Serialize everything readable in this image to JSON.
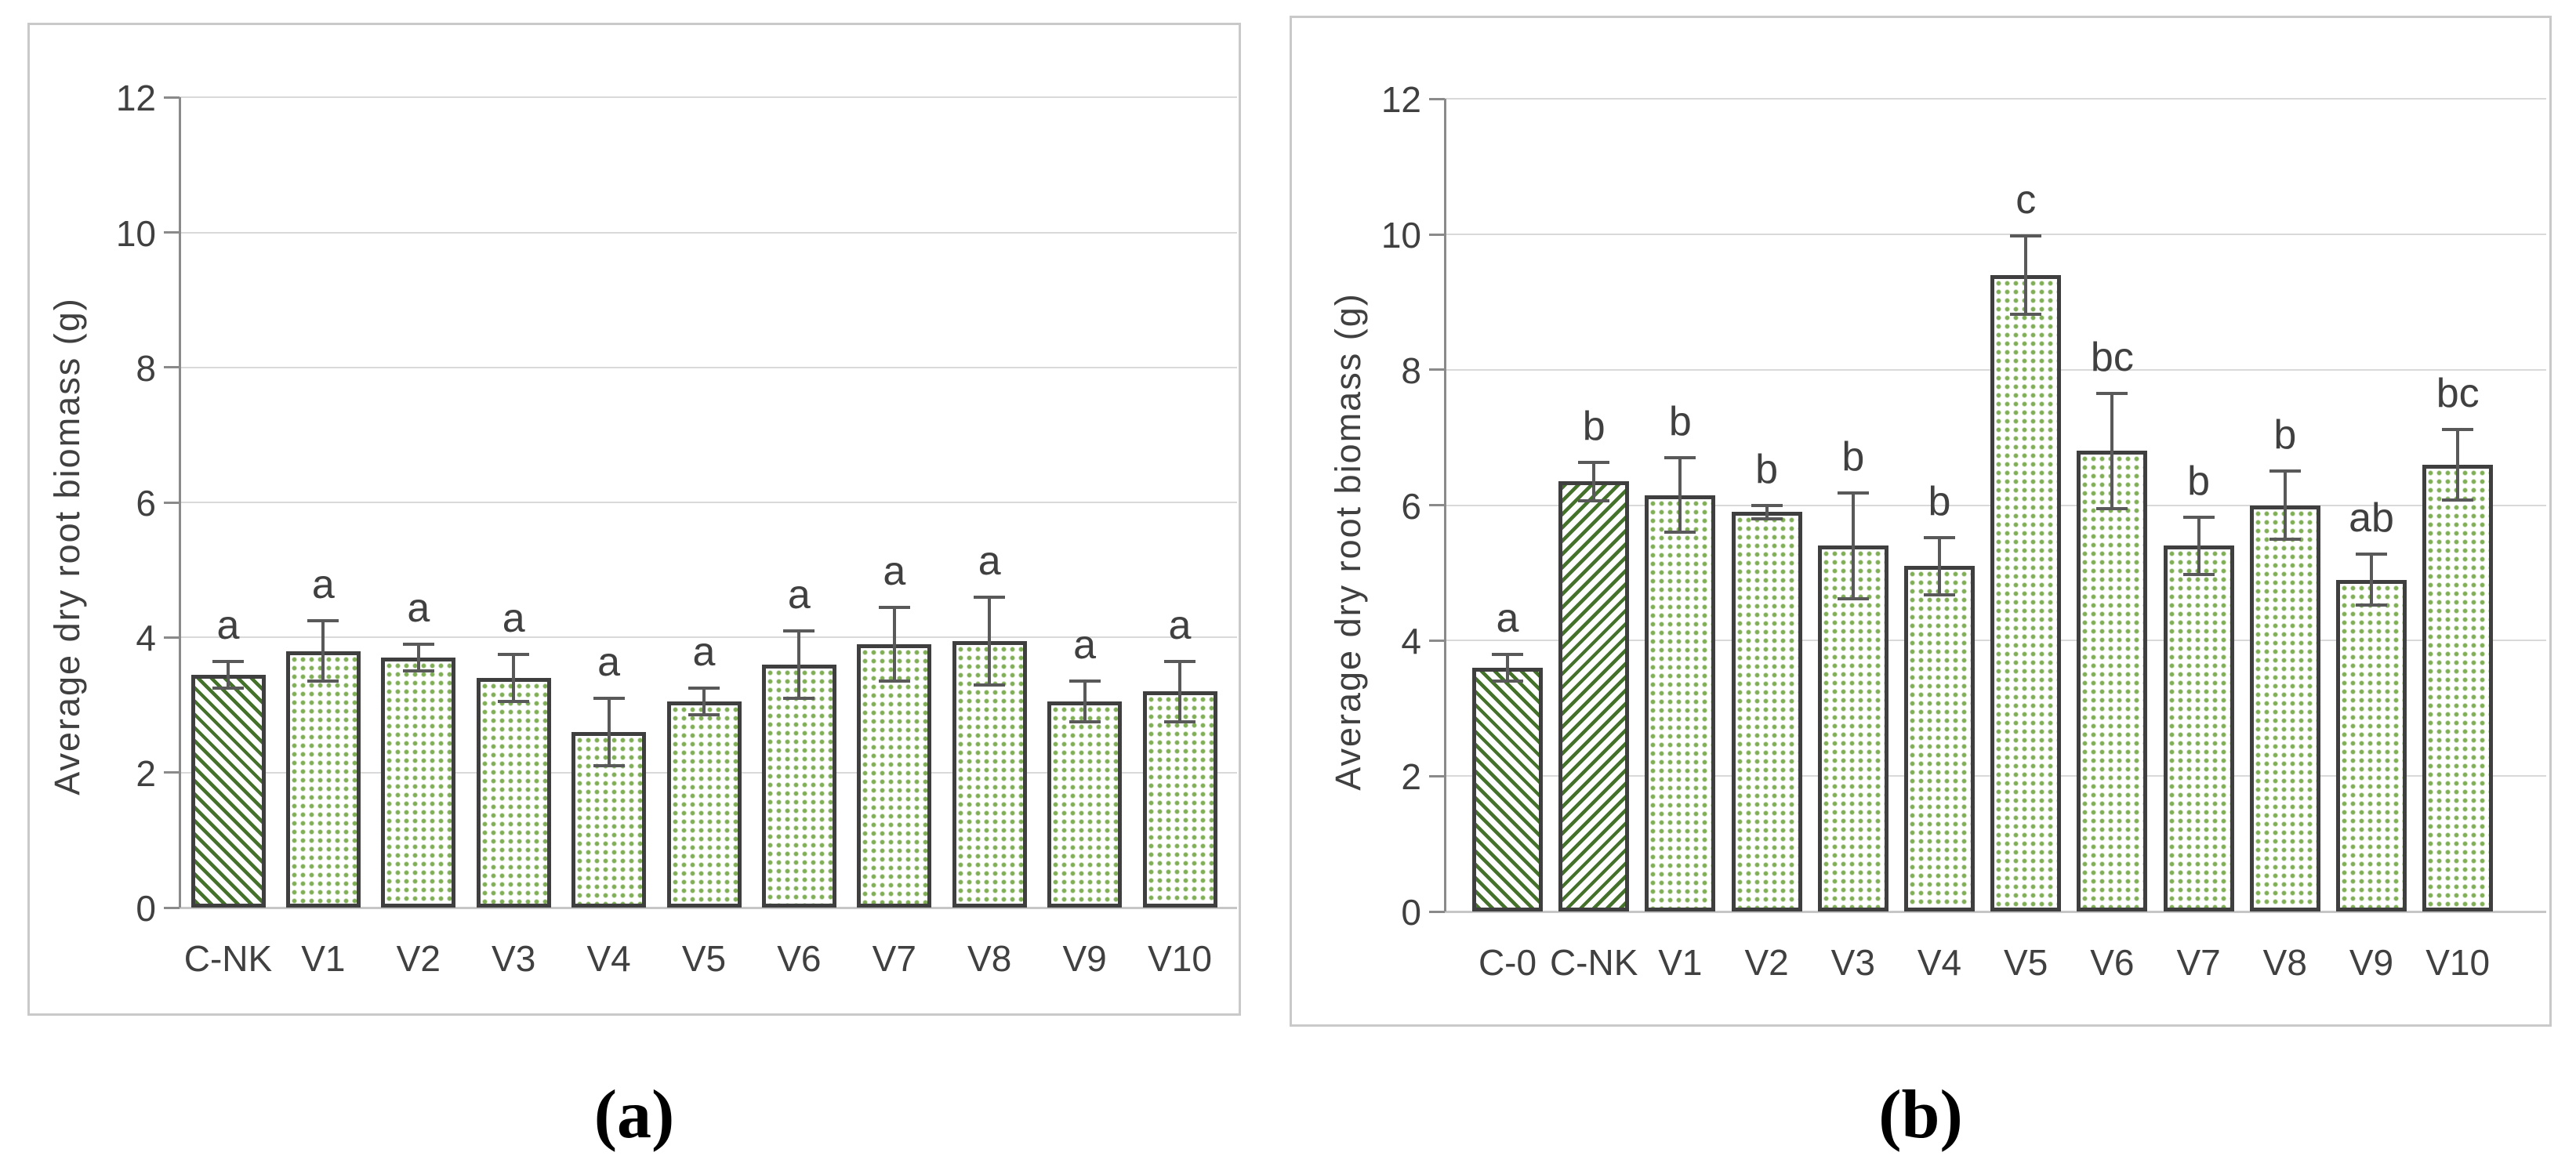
{
  "figure_type": "two-panel bar chart figure",
  "colors": {
    "dots_green": "#7fae55",
    "hatch_green": "#44722b",
    "bar_border": "#3f3f3f",
    "error_bar": "#595959",
    "gridline": "#d9d9d9",
    "axis_line": "#8a8a8a",
    "text": "#404040",
    "panel_border": "#c9c9c9"
  },
  "chart_data": [
    {
      "id": "a",
      "type": "bar",
      "title": "",
      "xlabel": "",
      "ylabel": "Average dry root biomass (g)",
      "ylim": [
        0,
        12
      ],
      "yticks": [
        0,
        2,
        4,
        6,
        8,
        10,
        12
      ],
      "grid": true,
      "legend": "none",
      "caption": "(a)",
      "categories": [
        "C-NK",
        "V1",
        "V2",
        "V3",
        "V4",
        "V5",
        "V6",
        "V7",
        "V8",
        "V9",
        "V10"
      ],
      "series": [
        {
          "name": "Average dry root biomass (g)",
          "values": [
            3.45,
            3.8,
            3.7,
            3.4,
            2.6,
            3.05,
            3.6,
            3.9,
            3.95,
            3.05,
            3.2
          ],
          "error_bars": [
            0.2,
            0.45,
            0.2,
            0.35,
            0.5,
            0.2,
            0.5,
            0.55,
            0.65,
            0.3,
            0.45
          ]
        }
      ],
      "significance_letters": [
        "a",
        "a",
        "a",
        "a",
        "a",
        "a",
        "a",
        "a",
        "a",
        "a",
        "a"
      ],
      "bar_patterns": [
        "diagonal-hatch-down",
        "dots",
        "dots",
        "dots",
        "dots",
        "dots",
        "dots",
        "dots",
        "dots",
        "dots",
        "dots"
      ]
    },
    {
      "id": "b",
      "type": "bar",
      "title": "",
      "xlabel": "",
      "ylabel": "Average dry root biomass (g)",
      "ylim": [
        0,
        12
      ],
      "yticks": [
        0,
        2,
        4,
        6,
        8,
        10,
        12
      ],
      "grid": true,
      "legend": "none",
      "caption": "(b)",
      "categories": [
        "C-0",
        "C-NK",
        "V1",
        "V2",
        "V3",
        "V4",
        "V5",
        "V6",
        "V7",
        "V8",
        "V9",
        "V10"
      ],
      "series": [
        {
          "name": "Average dry root biomass (g)",
          "values": [
            3.6,
            6.35,
            6.15,
            5.9,
            5.4,
            5.1,
            9.4,
            6.8,
            5.4,
            6.0,
            4.9,
            6.6
          ],
          "error_bars": [
            0.2,
            0.28,
            0.55,
            0.1,
            0.78,
            0.42,
            0.58,
            0.85,
            0.42,
            0.5,
            0.38,
            0.52
          ]
        }
      ],
      "significance_letters": [
        "a",
        "b",
        "b",
        "b",
        "b",
        "b",
        "c",
        "bc",
        "b",
        "b",
        "ab",
        "bc"
      ],
      "bar_patterns": [
        "diagonal-hatch-down",
        "diagonal-hatch-up",
        "dots",
        "dots",
        "dots",
        "dots",
        "dots",
        "dots",
        "dots",
        "dots",
        "dots",
        "dots"
      ]
    }
  ]
}
